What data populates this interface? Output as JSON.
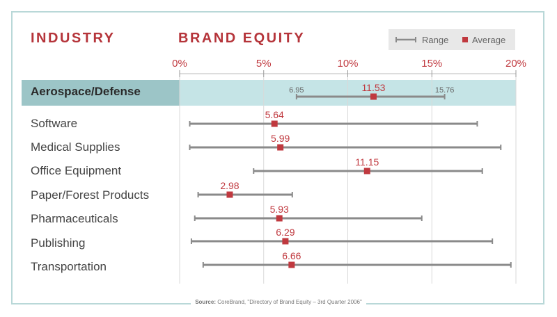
{
  "headers": {
    "left": "INDUSTRY",
    "right": "BRAND EQUITY"
  },
  "legend": {
    "range_label": "Range",
    "average_label": "Average"
  },
  "source": {
    "prefix": "Source:",
    "text": "CoreBrand, \"Directory of Brand Equity – 3rd Quarter 2006\""
  },
  "colors": {
    "accent": "#b5343a",
    "range": "#8a8a8a",
    "highlight": "#c5e4e6",
    "axis": "#bbbbbb"
  },
  "chart_data": {
    "type": "range",
    "title": "",
    "xlabel": "",
    "ylabel": "",
    "xlim": [
      0,
      20
    ],
    "x_ticks": [
      0,
      5,
      10,
      15,
      20
    ],
    "x_tick_labels": [
      "0%",
      "5%",
      "10%",
      "15%",
      "20%"
    ],
    "grid": "vertical",
    "highlight_category": "Aerospace/Defense",
    "categories": [
      "Aerospace/Defense",
      "Software",
      "Medical Supplies",
      "Office Equipment",
      "Paper/Forest Products",
      "Pharmaceuticals",
      "Publishing",
      "Transportation"
    ],
    "series": [
      {
        "name": "Range",
        "min": [
          6.95,
          0.6,
          0.6,
          4.4,
          1.1,
          0.9,
          0.7,
          1.4
        ],
        "max": [
          15.76,
          17.7,
          19.1,
          18.0,
          6.7,
          14.4,
          18.6,
          19.7
        ]
      },
      {
        "name": "Average",
        "values": [
          11.53,
          5.64,
          5.99,
          11.15,
          2.98,
          5.93,
          6.29,
          6.66
        ]
      }
    ],
    "point_labels": {
      "average": [
        "11.53",
        "5.64",
        "5.99",
        "11.15",
        "2.98",
        "5.93",
        "6.29",
        "6.66"
      ],
      "range_min": [
        "6.95",
        "",
        "",
        "",
        "",
        "",
        "",
        ""
      ],
      "range_max": [
        "15.76",
        "",
        "",
        "",
        "",
        "",
        "",
        ""
      ]
    }
  }
}
